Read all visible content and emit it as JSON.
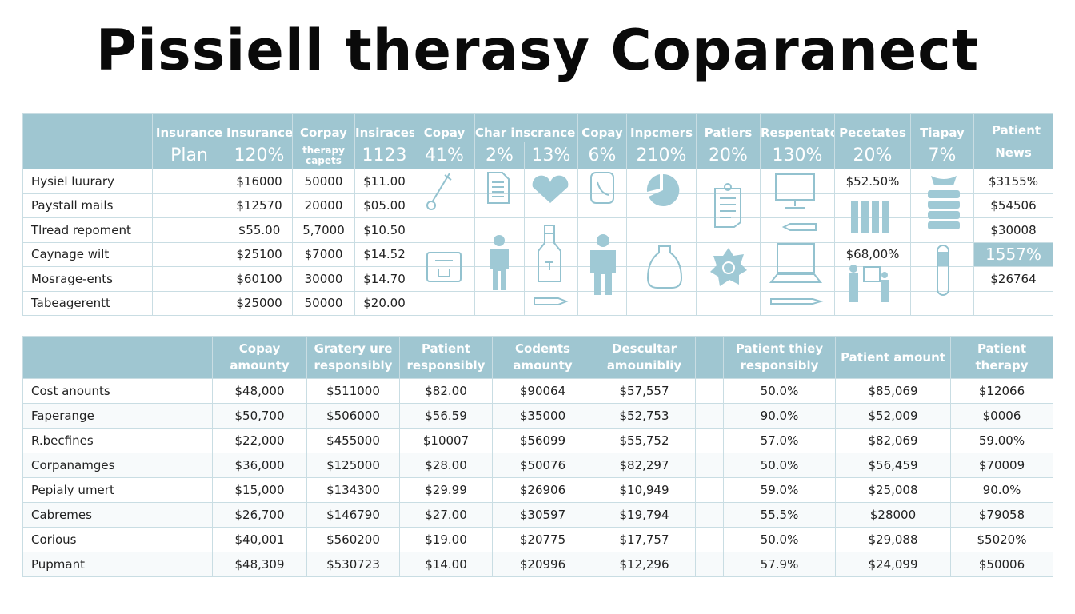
{
  "title": "Pissiell therasy Coparanect",
  "top_table": {
    "header_row1": [
      "Insurance",
      "Insurance",
      "Corpay",
      "Insiraces",
      "Copay",
      "Char inscrance:",
      "Copay",
      "Inpcmers",
      "Patiers",
      "Respentatce",
      "Pecetates",
      "Tiapay"
    ],
    "header_row2": [
      "Plan",
      "120%",
      "therapy capets",
      "1123",
      "41%",
      "2%",
      "13%",
      "6%",
      "210%",
      "20%",
      "130%",
      "20%",
      "7%"
    ],
    "last_header": "Patient News",
    "rows": [
      {
        "label": "Hysiel luurary",
        "c1": "$16000",
        "c2": "50000",
        "c3": "$11.00",
        "pec": "$52.50%",
        "patient": "$3155%"
      },
      {
        "label": "Paystall mails",
        "c1": "$12570",
        "c2": "20000",
        "c3": "$05.00",
        "pec": "",
        "patient": "$54506"
      },
      {
        "label": "Tlread repoment",
        "c1": "$55.00",
        "c2": "5,7000",
        "c3": "$10.50",
        "pec": "",
        "patient": "$30008"
      },
      {
        "label": "Caynage wilt",
        "c1": "$25100",
        "c2": "$7000",
        "c3": "$14.52",
        "pec": "$68,00%",
        "patient": "1557%"
      },
      {
        "label": "Mosrage-ents",
        "c1": "$60100",
        "c2": "30000",
        "c3": "$14.70",
        "pec": "",
        "patient": "$26764"
      },
      {
        "label": "Tabeagerentt",
        "c1": "$25000",
        "c2": "50000",
        "c3": "$20.00",
        "pec": "",
        "patient": ""
      }
    ]
  },
  "bottom_table": {
    "headers": [
      "Copay amounty",
      "Gratery ure responsibly",
      "Patient responsibly",
      "Codents amounty",
      "Descultar amounibliy",
      "",
      "Patient thiey responsibly",
      "Patient amount",
      "Patient therapy"
    ],
    "rows": [
      [
        "Cost anounts",
        "$48,000",
        "$511000",
        "$82.00",
        "$90064",
        "$57,557",
        "",
        "50.0%",
        "$85,069",
        "$12066"
      ],
      [
        "Faperange",
        "$50,700",
        "$506000",
        "$56.59",
        "$35000",
        "$52,753",
        "",
        "90.0%",
        "$52,009",
        "$0006"
      ],
      [
        "R.becfines",
        "$22,000",
        "$455000",
        "$10007",
        "$56099",
        "$55,752",
        "",
        "57.0%",
        "$82,069",
        "59.00%"
      ],
      [
        "Corpanamges",
        "$36,000",
        "$125000",
        "$28.00",
        "$50076",
        "$82,297",
        "",
        "50.0%",
        "$56,459",
        "$70009"
      ],
      [
        "Pepialy umert",
        "$15,000",
        "$134300",
        "$29.99",
        "$26906",
        "$10,949",
        "",
        "59.0%",
        "$25,008",
        "90.0%"
      ],
      [
        "Cabremes",
        "$26,700",
        "$146790",
        "$27.00",
        "$30597",
        "$19,794",
        "",
        "55.5%",
        "$28000",
        "$79058"
      ],
      [
        "Corious",
        "$40,001",
        "$560200",
        "$19.00",
        "$20775",
        "$17,757",
        "",
        "50.0%",
        "$29,088",
        "$5020%"
      ],
      [
        "Pupmant",
        "$48,309",
        "$530723",
        "$14.00",
        "$20996",
        "$12,296",
        "",
        "57.9%",
        "$24,099",
        "$50006"
      ]
    ]
  },
  "colors": {
    "header": "#9fc6d1",
    "icon": "#93c2cf"
  }
}
